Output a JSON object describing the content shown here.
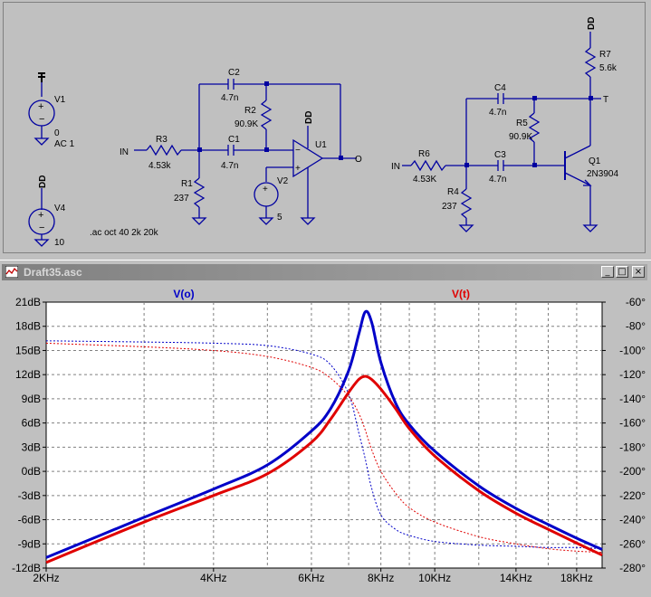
{
  "window": {
    "title": "Draft35.asc",
    "minimize_glyph": "_",
    "restore_glyph": "□",
    "close_glyph": "×"
  },
  "schematic": {
    "sources": {
      "v1": {
        "name": "V1",
        "value1": "0",
        "value2": "AC 1"
      },
      "v4": {
        "name": "V4",
        "value": "10",
        "net": "DD"
      },
      "v2": {
        "name": "V2",
        "value": "5"
      }
    },
    "directive": ".ac oct 40 2k 20k",
    "opamp_circuit": {
      "r3": {
        "name": "R3",
        "value": "4.53k"
      },
      "r1": {
        "name": "R1",
        "value": "237"
      },
      "r2": {
        "name": "R2",
        "value": "90.9K"
      },
      "c1": {
        "name": "C1",
        "value": "4.7n"
      },
      "c2": {
        "name": "C2",
        "value": "4.7n"
      },
      "u1": {
        "name": "U1"
      },
      "in_label": "IN",
      "out_label": "O",
      "supply_label": "DD"
    },
    "bjt_circuit": {
      "r6": {
        "name": "R6",
        "value": "4.53K"
      },
      "r4": {
        "name": "R4",
        "value": "237"
      },
      "r5": {
        "name": "R5",
        "value": "90.9K"
      },
      "r7": {
        "name": "R7",
        "value": "5.6k"
      },
      "c3": {
        "name": "C3",
        "value": "4.7n"
      },
      "c4": {
        "name": "C4",
        "value": "4.7n"
      },
      "q1": {
        "name": "Q1",
        "model": "2N3904"
      },
      "in_label": "IN",
      "out_label": "T",
      "supply_label": "DD"
    }
  },
  "chart_data": {
    "type": "line",
    "x_scale": "log",
    "x_unit": "Hz",
    "xlim": [
      2000,
      20000
    ],
    "x_ticks": [
      {
        "value": 2000,
        "label": "2KHz"
      },
      {
        "value": 4000,
        "label": "4KHz"
      },
      {
        "value": 6000,
        "label": "6KHz"
      },
      {
        "value": 8000,
        "label": "8KHz"
      },
      {
        "value": 10000,
        "label": "10KHz"
      },
      {
        "value": 14000,
        "label": "14KHz"
      },
      {
        "value": 18000,
        "label": "18KHz"
      }
    ],
    "x_minor_gridlines": [
      3000,
      5000,
      7000,
      9000,
      12000,
      16000,
      20000
    ],
    "y_left": {
      "ylim": [
        -12,
        21
      ],
      "ticks": [
        {
          "value": 21,
          "label": "21dB"
        },
        {
          "value": 18,
          "label": "18dB"
        },
        {
          "value": 15,
          "label": "15dB"
        },
        {
          "value": 12,
          "label": "12dB"
        },
        {
          "value": 9,
          "label": "9dB"
        },
        {
          "value": 6,
          "label": "6dB"
        },
        {
          "value": 3,
          "label": "3dB"
        },
        {
          "value": 0,
          "label": "0dB"
        },
        {
          "value": -3,
          "label": "-3dB"
        },
        {
          "value": -6,
          "label": "-6dB"
        },
        {
          "value": -9,
          "label": "-9dB"
        },
        {
          "value": -12,
          "label": "-12dB"
        }
      ]
    },
    "y_right": {
      "ylim": [
        -280,
        -60
      ],
      "ticks": [
        {
          "value": -60,
          "label": "-60°"
        },
        {
          "value": -80,
          "label": "-80°"
        },
        {
          "value": -100,
          "label": "-100°"
        },
        {
          "value": -120,
          "label": "-120°"
        },
        {
          "value": -140,
          "label": "-140°"
        },
        {
          "value": -160,
          "label": "-160°"
        },
        {
          "value": -180,
          "label": "-180°"
        },
        {
          "value": -200,
          "label": "-200°"
        },
        {
          "value": -220,
          "label": "-220°"
        },
        {
          "value": -240,
          "label": "-240°"
        },
        {
          "value": -260,
          "label": "-260°"
        },
        {
          "value": -280,
          "label": "-280°"
        }
      ]
    },
    "grid": true,
    "series": [
      {
        "name": "V(o)",
        "color": "#0000c8",
        "magnitude_db": {
          "x": [
            2000,
            3000,
            4000,
            5000,
            6000,
            6500,
            7000,
            7300,
            7500,
            7700,
            8000,
            8500,
            9000,
            10000,
            12000,
            14000,
            16000,
            18000,
            20000
          ],
          "y": [
            -10.7,
            -5.7,
            -2.2,
            0.8,
            5,
            7.8,
            12.5,
            17,
            19.8,
            18.5,
            13.5,
            8.5,
            5.8,
            2.5,
            -1.8,
            -4.6,
            -6.6,
            -8.3,
            -9.7
          ]
        },
        "phase_deg": {
          "x": [
            2000,
            3000,
            4000,
            5000,
            6000,
            6500,
            7000,
            7300,
            7500,
            7700,
            8000,
            8500,
            9000,
            10000,
            12000,
            14000,
            16000,
            18000,
            20000
          ],
          "y": [
            -92,
            -93,
            -94,
            -96,
            -103,
            -112,
            -136,
            -168,
            -190,
            -214,
            -236,
            -248,
            -253,
            -258,
            -261,
            -262,
            -263,
            -263,
            -264
          ]
        }
      },
      {
        "name": "V(t)",
        "color": "#e00000",
        "magnitude_db": {
          "x": [
            2000,
            3000,
            4000,
            5000,
            6000,
            6500,
            7000,
            7300,
            7500,
            7700,
            8000,
            8500,
            9000,
            10000,
            12000,
            14000,
            16000,
            18000,
            20000
          ],
          "y": [
            -11.3,
            -6.3,
            -3,
            -0.3,
            3.6,
            6.5,
            9.8,
            11.4,
            11.8,
            11.4,
            10.2,
            7.8,
            5.3,
            1.9,
            -2.4,
            -5.2,
            -7.2,
            -8.9,
            -10.4
          ]
        },
        "phase_deg": {
          "x": [
            2000,
            3000,
            4000,
            5000,
            6000,
            6500,
            7000,
            7300,
            7500,
            7700,
            8000,
            8500,
            9000,
            10000,
            12000,
            14000,
            16000,
            18000,
            20000
          ],
          "y": [
            -94,
            -97,
            -100,
            -105,
            -114,
            -123,
            -138,
            -152,
            -166,
            -182,
            -200,
            -218,
            -230,
            -242,
            -254,
            -260,
            -264,
            -266,
            -267
          ]
        }
      }
    ]
  }
}
